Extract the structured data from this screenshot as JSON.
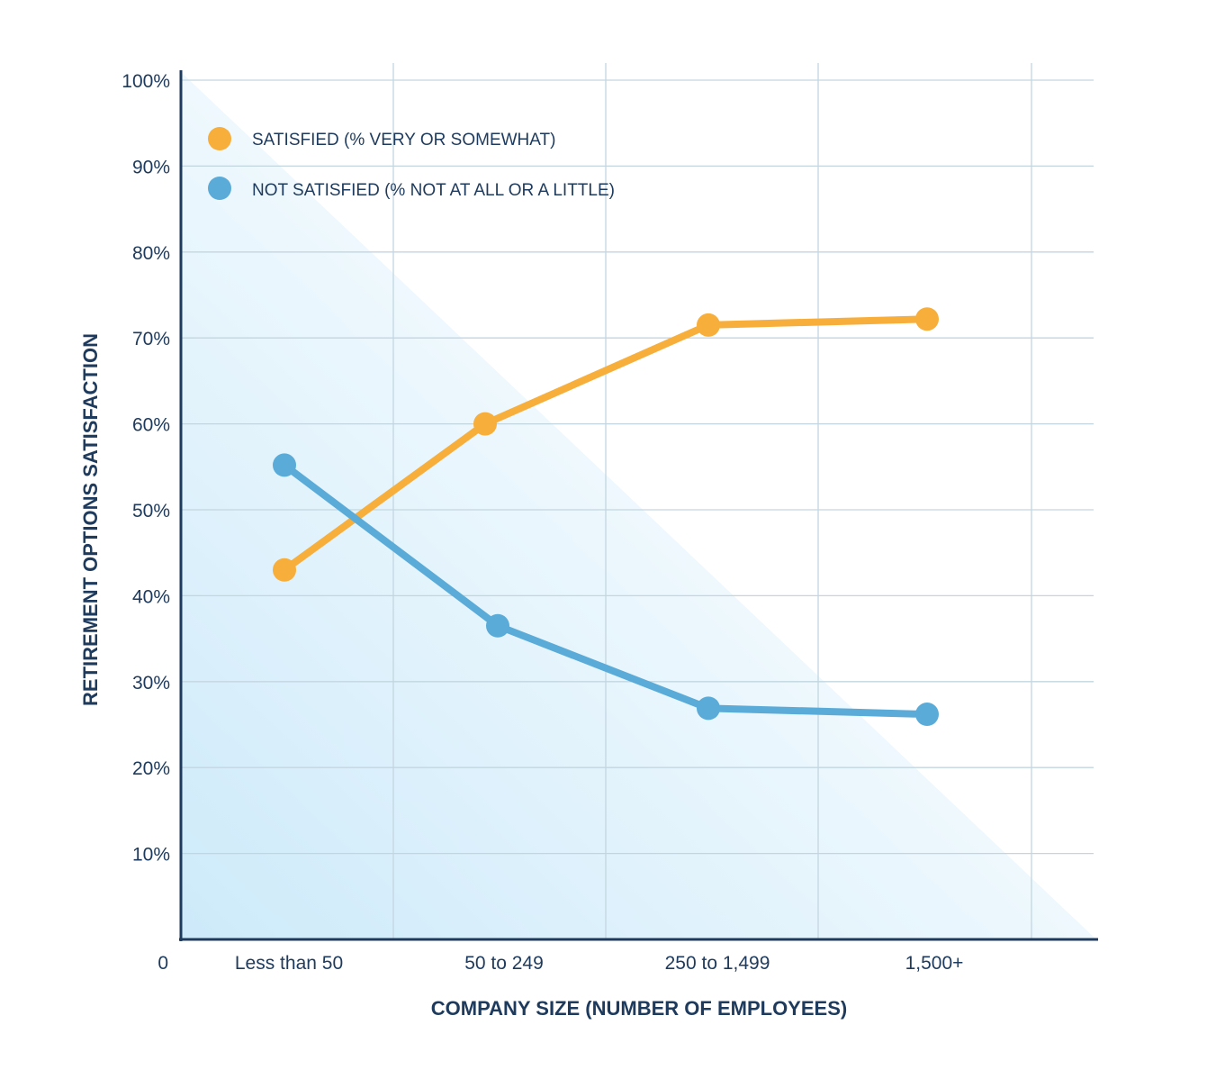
{
  "chart_data": {
    "type": "line",
    "title": "",
    "xlabel": "COMPANY SIZE (NUMBER OF EMPLOYEES)",
    "ylabel": "RETIREMENT OPTIONS SATISFACTION",
    "categories": [
      "Less than 50",
      "50 to 249",
      "250 to 1,499",
      "1,500+"
    ],
    "origin_label": "0",
    "y_ticks": [
      "10%",
      "20%",
      "30%",
      "40%",
      "50%",
      "60%",
      "70%",
      "80%",
      "90%",
      "100%"
    ],
    "ylim": [
      0,
      100
    ],
    "grid": true,
    "legend_position": "top-left",
    "series": [
      {
        "name": "SATISFIED (% VERY OR SOMEWHAT)",
        "color": "#f7ae3a",
        "values": [
          43,
          60,
          71.5,
          72.2
        ]
      },
      {
        "name": "NOT SATISFIED (% NOT AT ALL OR A LITTLE)",
        "color": "#5aabd8",
        "values": [
          55.2,
          36.5,
          26.9,
          26.2
        ]
      }
    ]
  }
}
